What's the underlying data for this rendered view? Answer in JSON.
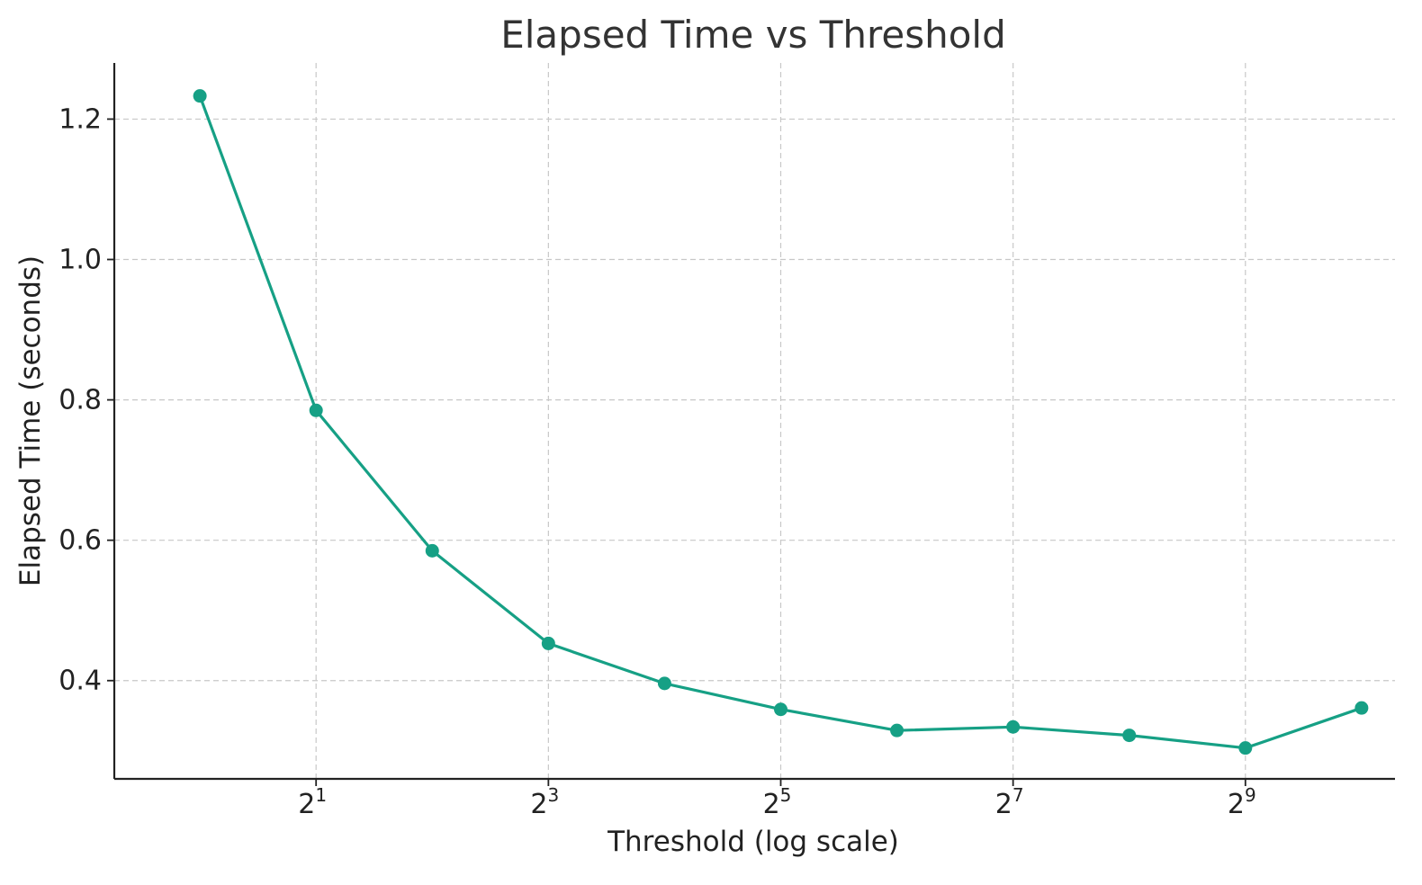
{
  "chart_data": {
    "type": "line",
    "title": "Elapsed Time vs Threshold",
    "xlabel": "Threshold (log scale)",
    "ylabel": "Elapsed Time (seconds)",
    "x_scale": "log2",
    "x": [
      1,
      2,
      4,
      8,
      16,
      32,
      64,
      128,
      256,
      512,
      1024
    ],
    "xlim": [
      0.6,
      1250
    ],
    "ylim": [
      0.26,
      1.28
    ],
    "x_ticks": [
      {
        "value": 2,
        "base": "2",
        "exp": "1"
      },
      {
        "value": 8,
        "base": "2",
        "exp": "3"
      },
      {
        "value": 32,
        "base": "2",
        "exp": "5"
      },
      {
        "value": 128,
        "base": "2",
        "exp": "7"
      },
      {
        "value": 512,
        "base": "2",
        "exp": "9"
      }
    ],
    "y_ticks": [
      {
        "value": 0.4,
        "label": "0.4"
      },
      {
        "value": 0.6,
        "label": "0.6"
      },
      {
        "value": 0.8,
        "label": "0.8"
      },
      {
        "value": 1.0,
        "label": "1.0"
      },
      {
        "value": 1.2,
        "label": "1.2"
      }
    ],
    "series": [
      {
        "values": [
          1.233,
          0.785,
          0.585,
          0.453,
          0.396,
          0.359,
          0.329,
          0.334,
          0.322,
          0.304,
          0.361
        ],
        "color": "#16a085"
      }
    ],
    "grid": true,
    "legend": "none"
  }
}
